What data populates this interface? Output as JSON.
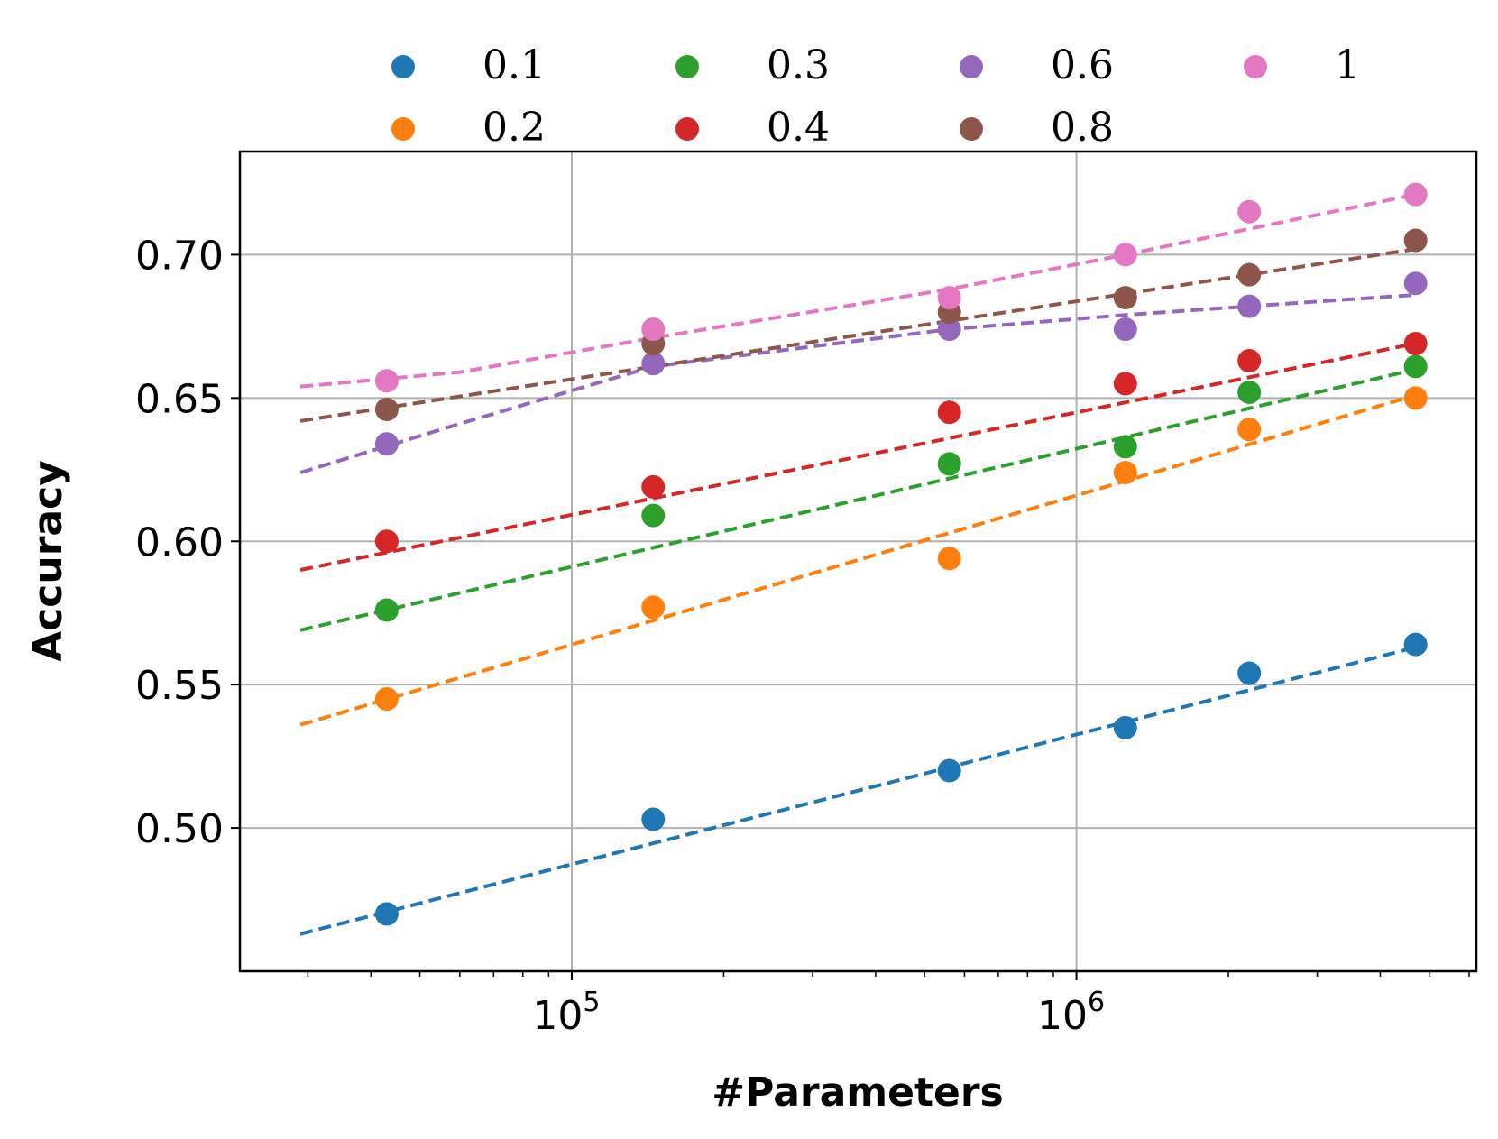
{
  "chart_data": {
    "type": "scatter",
    "title": "",
    "xlabel": "#Parameters",
    "ylabel": "Accuracy",
    "xscale": "log",
    "xlim": [
      22000,
      6200000
    ],
    "ylim": [
      0.45,
      0.736
    ],
    "x_ticks": [
      {
        "value": 100000,
        "base": "10",
        "exp": "5"
      },
      {
        "value": 1000000,
        "base": "10",
        "exp": "6"
      }
    ],
    "y_ticks": [
      {
        "value": 0.5,
        "label": "0.50"
      },
      {
        "value": 0.55,
        "label": "0.55"
      },
      {
        "value": 0.6,
        "label": "0.60"
      },
      {
        "value": 0.65,
        "label": "0.65"
      },
      {
        "value": 0.7,
        "label": "0.70"
      }
    ],
    "grid": true,
    "legend_position": "top, outside plot, 4 columns",
    "x": [
      43000,
      145000,
      560000,
      1250000,
      2200000,
      4700000
    ],
    "fit_x_range": [
      29000,
      4700000
    ],
    "series": [
      {
        "name": "0.1",
        "color": "#1f77b4",
        "values": [
          0.47,
          0.503,
          0.52,
          0.535,
          0.554,
          0.564
        ],
        "fit": [
          0.463,
          0.563
        ]
      },
      {
        "name": "0.2",
        "color": "#ff7f0e",
        "values": [
          0.545,
          0.577,
          0.594,
          0.624,
          0.639,
          0.65
        ],
        "fit": [
          0.536,
          0.651
        ]
      },
      {
        "name": "0.3",
        "color": "#2ca02c",
        "values": [
          0.576,
          0.609,
          0.627,
          0.633,
          0.652,
          0.661
        ],
        "fit": [
          0.569,
          0.66
        ]
      },
      {
        "name": "0.4",
        "color": "#d62728",
        "values": [
          0.6,
          0.619,
          0.645,
          0.655,
          0.663,
          0.669
        ],
        "fit": [
          0.59,
          0.669
        ]
      },
      {
        "name": "0.6",
        "color": "#9467bd",
        "values": [
          0.634,
          0.662,
          0.674,
          0.674,
          0.682,
          0.69
        ],
        "fit_curve": [
          [
            29000,
            0.624
          ],
          [
            60000,
            0.641
          ],
          [
            145000,
            0.661
          ],
          [
            560000,
            0.674
          ],
          [
            1250000,
            0.679
          ],
          [
            2200000,
            0.682
          ],
          [
            4700000,
            0.686
          ]
        ]
      },
      {
        "name": "0.8",
        "color": "#8c564b",
        "values": [
          0.646,
          0.669,
          0.68,
          0.685,
          0.693,
          0.705
        ],
        "fit": [
          0.642,
          0.702
        ]
      },
      {
        "name": "1",
        "color": "#e377c2",
        "values": [
          0.656,
          0.674,
          0.685,
          0.7,
          0.715,
          0.721
        ],
        "fit_curve": [
          [
            29000,
            0.654
          ],
          [
            60000,
            0.659
          ],
          [
            145000,
            0.671
          ],
          [
            560000,
            0.688
          ],
          [
            1250000,
            0.7
          ],
          [
            2200000,
            0.709
          ],
          [
            4700000,
            0.721
          ]
        ]
      }
    ]
  }
}
